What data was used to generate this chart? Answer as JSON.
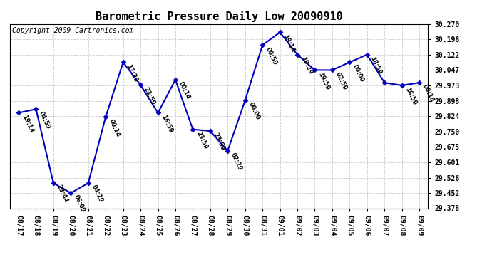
{
  "title": "Barometric Pressure Daily Low 20090910",
  "copyright": "Copyright 2009 Cartronics.com",
  "x_labels": [
    "08/17",
    "08/18",
    "08/19",
    "08/20",
    "08/21",
    "08/22",
    "08/23",
    "08/24",
    "08/25",
    "08/26",
    "08/27",
    "08/28",
    "08/29",
    "08/30",
    "08/31",
    "09/01",
    "09/02",
    "09/03",
    "09/04",
    "09/05",
    "09/06",
    "09/07",
    "09/08",
    "09/09"
  ],
  "y_values": [
    29.84,
    29.858,
    29.5,
    29.452,
    29.5,
    29.82,
    30.085,
    29.975,
    29.84,
    30.0,
    29.76,
    29.752,
    29.656,
    29.9,
    30.168,
    30.23,
    30.122,
    30.047,
    30.047,
    30.085,
    30.122,
    29.986,
    29.973,
    29.986
  ],
  "point_labels": [
    "19:14",
    "04:59",
    "23:44",
    "06:09",
    "04:29",
    "00:14",
    "17:29",
    "23:59",
    "16:59",
    "00:14",
    "23:59",
    "23:59",
    "02:29",
    "00:00",
    "00:59",
    "19:14",
    "19:29",
    "19:59",
    "02:59",
    "00:00",
    "18:59",
    "",
    "16:59",
    "00:14"
  ],
  "y_ticks": [
    29.378,
    29.452,
    29.526,
    29.601,
    29.675,
    29.75,
    29.824,
    29.898,
    29.973,
    30.047,
    30.122,
    30.196,
    30.27
  ],
  "y_min": 29.378,
  "y_max": 30.27,
  "line_color": "#0000bb",
  "marker_color": "#0000bb",
  "bg_color": "#ffffff",
  "grid_color": "#cccccc",
  "title_fontsize": 11,
  "copyright_fontsize": 7,
  "tick_fontsize": 7,
  "label_fontsize": 6
}
